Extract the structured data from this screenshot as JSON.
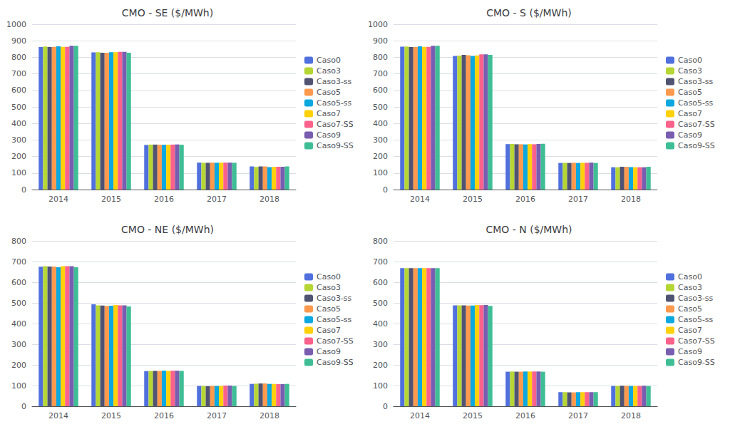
{
  "chart_data": [
    {
      "type": "bar",
      "title": "CMO - SE ($/MWh)",
      "categories": [
        "2014",
        "2015",
        "2016",
        "2017",
        "2018"
      ],
      "series": [
        {
          "name": "Caso0",
          "values": [
            862,
            830,
            270,
            163,
            140
          ]
        },
        {
          "name": "Caso3",
          "values": [
            865,
            831,
            272,
            162,
            137
          ]
        },
        {
          "name": "Caso3-ss",
          "values": [
            862,
            828,
            272,
            162,
            140
          ]
        },
        {
          "name": "Caso5",
          "values": [
            863,
            828,
            271,
            163,
            140
          ]
        },
        {
          "name": "Caso5-ss",
          "values": [
            866,
            831,
            271,
            162,
            136
          ]
        },
        {
          "name": "Caso7",
          "values": [
            863,
            831,
            271,
            163,
            137
          ]
        },
        {
          "name": "Caso7-SS",
          "values": [
            863,
            833,
            272,
            163,
            138
          ]
        },
        {
          "name": "Caso9",
          "values": [
            870,
            833,
            273,
            163,
            138
          ]
        },
        {
          "name": "Caso9-SS",
          "values": [
            870,
            828,
            271,
            162,
            140
          ]
        }
      ],
      "ylim": [
        0,
        1000
      ],
      "yticks": [
        0,
        100,
        200,
        300,
        400,
        500,
        600,
        700,
        800,
        900,
        1000
      ],
      "grid": true,
      "legend": "right"
    },
    {
      "type": "bar",
      "title": "CMO - S ($/MWh)",
      "categories": [
        "2014",
        "2015",
        "2016",
        "2017",
        "2018"
      ],
      "series": [
        {
          "name": "Caso0",
          "values": [
            864,
            808,
            275,
            161,
            135
          ]
        },
        {
          "name": "Caso3",
          "values": [
            865,
            810,
            276,
            162,
            135
          ]
        },
        {
          "name": "Caso3-ss",
          "values": [
            862,
            815,
            274,
            161,
            138
          ]
        },
        {
          "name": "Caso5",
          "values": [
            862,
            812,
            274,
            162,
            138
          ]
        },
        {
          "name": "Caso5-ss",
          "values": [
            866,
            808,
            273,
            161,
            136
          ]
        },
        {
          "name": "Caso7",
          "values": [
            863,
            811,
            275,
            162,
            135
          ]
        },
        {
          "name": "Caso7-SS",
          "values": [
            863,
            818,
            274,
            162,
            135
          ]
        },
        {
          "name": "Caso9",
          "values": [
            870,
            818,
            276,
            163,
            135
          ]
        },
        {
          "name": "Caso9-SS",
          "values": [
            870,
            815,
            277,
            161,
            138
          ]
        }
      ],
      "ylim": [
        0,
        1000
      ],
      "yticks": [
        0,
        100,
        200,
        300,
        400,
        500,
        600,
        700,
        800,
        900,
        1000
      ],
      "grid": true,
      "legend": "right"
    },
    {
      "type": "bar",
      "title": "CMO - NE ($/MWh)",
      "categories": [
        "2014",
        "2015",
        "2016",
        "2017",
        "2018"
      ],
      "series": [
        {
          "name": "Caso0",
          "values": [
            675,
            493,
            170,
            98,
            108
          ]
        },
        {
          "name": "Caso3",
          "values": [
            678,
            488,
            171,
            98,
            109
          ]
        },
        {
          "name": "Caso3-ss",
          "values": [
            676,
            487,
            171,
            97,
            110
          ]
        },
        {
          "name": "Caso5",
          "values": [
            676,
            485,
            171,
            98,
            110
          ]
        },
        {
          "name": "Caso5-ss",
          "values": [
            672,
            486,
            172,
            98,
            108
          ]
        },
        {
          "name": "Caso7",
          "values": [
            678,
            490,
            171,
            98,
            108
          ]
        },
        {
          "name": "Caso7-SS",
          "values": [
            678,
            488,
            172,
            100,
            107
          ]
        },
        {
          "name": "Caso9",
          "values": [
            678,
            488,
            172,
            100,
            107
          ]
        },
        {
          "name": "Caso9-SS",
          "values": [
            672,
            483,
            171,
            98,
            108
          ]
        }
      ],
      "ylim": [
        0,
        800
      ],
      "yticks": [
        0,
        100,
        200,
        300,
        400,
        500,
        600,
        700,
        800
      ],
      "grid": true,
      "legend": "right"
    },
    {
      "type": "bar",
      "title": "CMO - N ($/MWh)",
      "categories": [
        "2014",
        "2015",
        "2016",
        "2017",
        "2018"
      ],
      "series": [
        {
          "name": "Caso0",
          "values": [
            668,
            488,
            167,
            68,
            98
          ]
        },
        {
          "name": "Caso3",
          "values": [
            668,
            488,
            168,
            68,
            98
          ]
        },
        {
          "name": "Caso3-ss",
          "values": [
            668,
            488,
            167,
            67,
            99
          ]
        },
        {
          "name": "Caso5",
          "values": [
            668,
            487,
            167,
            67,
            99
          ]
        },
        {
          "name": "Caso5-ss",
          "values": [
            668,
            487,
            168,
            68,
            98
          ]
        },
        {
          "name": "Caso7",
          "values": [
            668,
            490,
            168,
            68,
            98
          ]
        },
        {
          "name": "Caso7-SS",
          "values": [
            668,
            489,
            168,
            68,
            98
          ]
        },
        {
          "name": "Caso9",
          "values": [
            668,
            490,
            168,
            68,
            99
          ]
        },
        {
          "name": "Caso9-SS",
          "values": [
            668,
            485,
            167,
            68,
            98
          ]
        }
      ],
      "ylim": [
        0,
        800
      ],
      "yticks": [
        0,
        100,
        200,
        300,
        400,
        500,
        600,
        700,
        800
      ],
      "grid": true,
      "legend": "right"
    }
  ]
}
